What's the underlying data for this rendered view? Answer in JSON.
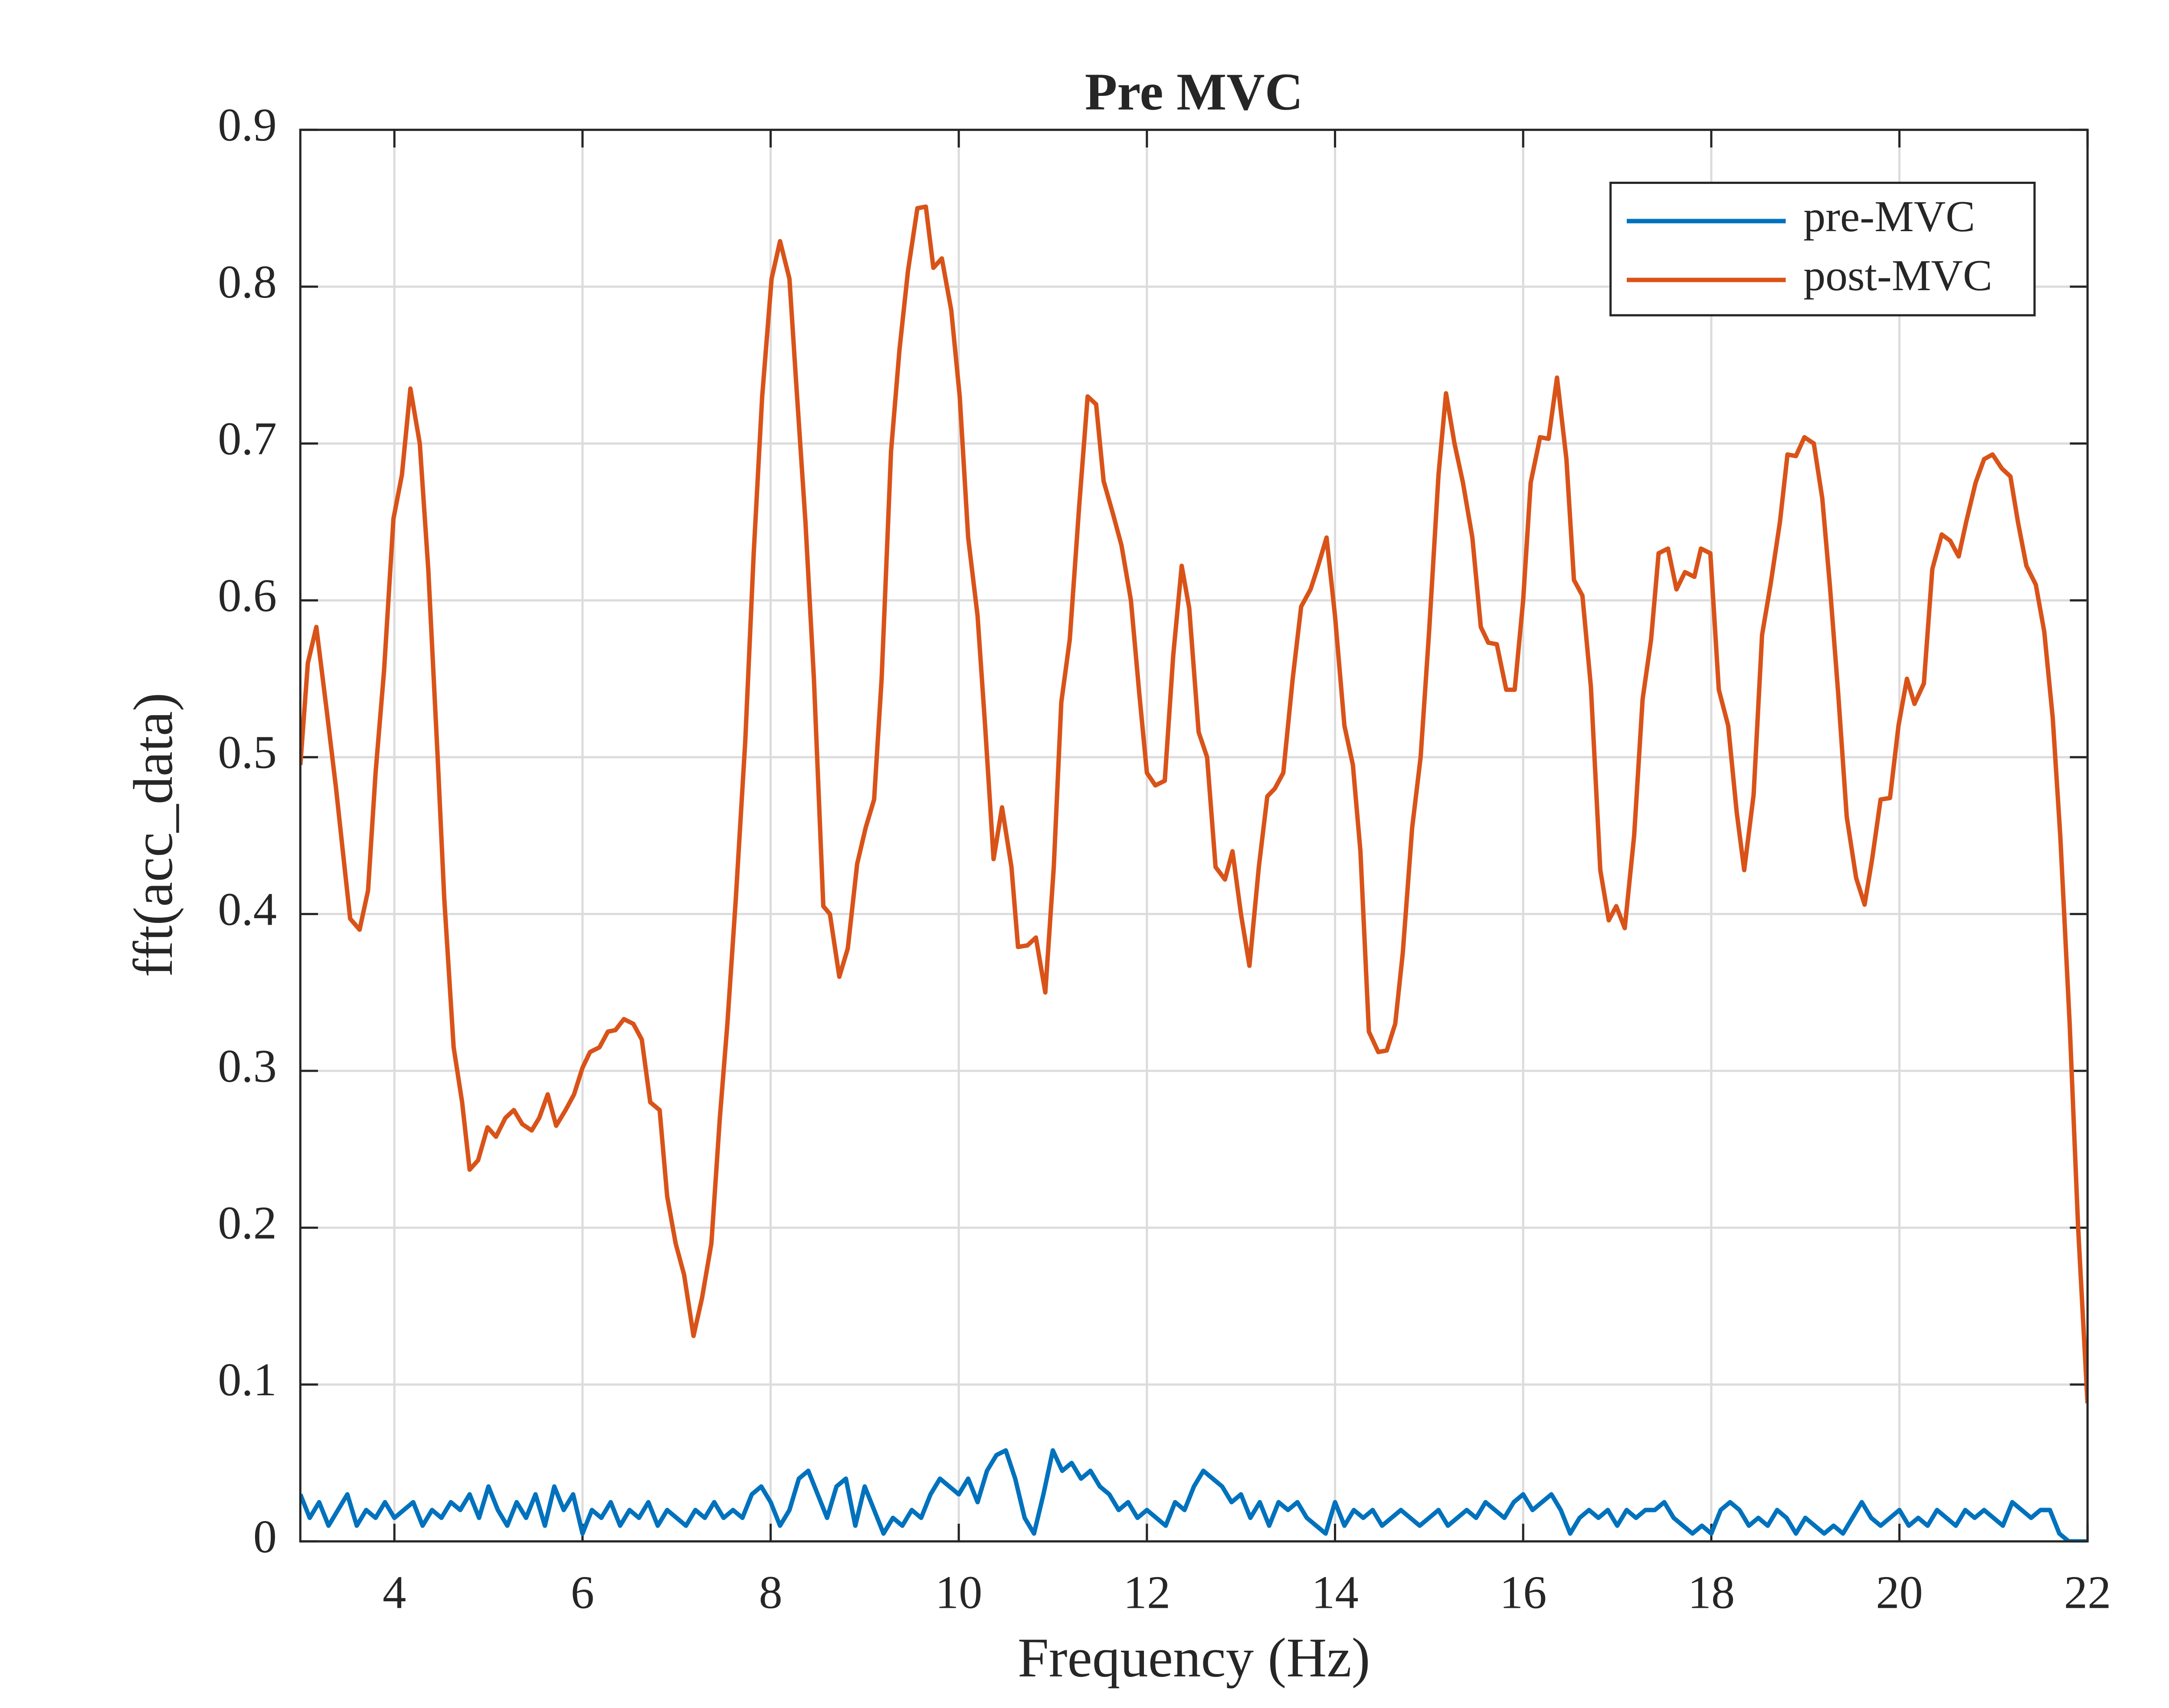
{
  "chart_data": {
    "type": "line",
    "title": "Pre MVC",
    "x_label": "Frequency (Hz)",
    "y_label": "fft(acc_data)",
    "xlim": [
      3,
      22
    ],
    "ylim": [
      0,
      0.9
    ],
    "xticks": [
      4,
      6,
      8,
      10,
      12,
      14,
      16,
      18,
      20,
      22
    ],
    "yticks": [
      0,
      0.1,
      0.2,
      0.3,
      0.4,
      0.5,
      0.6,
      0.7,
      0.8,
      0.9
    ],
    "grid": true,
    "legend": "upper right",
    "series": [
      {
        "name": "pre-MVC",
        "color": "#0072bd",
        "x": [
          3,
          3.1,
          3.2,
          3.3,
          3.4,
          3.5,
          3.6,
          3.7,
          3.8,
          3.9,
          4,
          4.1,
          4.2,
          4.3,
          4.4,
          4.5,
          4.6,
          4.7,
          4.8,
          4.9,
          5,
          5.1,
          5.2,
          5.3,
          5.4,
          5.5,
          5.6,
          5.7,
          5.8,
          5.9,
          6,
          6.1,
          6.2,
          6.3,
          6.4,
          6.5,
          6.6,
          6.7,
          6.8,
          6.9,
          7,
          7.1,
          7.2,
          7.3,
          7.4,
          7.5,
          7.6,
          7.7,
          7.8,
          7.9,
          8,
          8.1,
          8.2,
          8.3,
          8.4,
          8.5,
          8.6,
          8.7,
          8.8,
          8.9,
          9,
          9.1,
          9.2,
          9.3,
          9.4,
          9.5,
          9.6,
          9.7,
          9.8,
          9.9,
          10,
          10.1,
          10.2,
          10.3,
          10.4,
          10.5,
          10.6,
          10.7,
          10.8,
          10.9,
          11,
          11.1,
          11.2,
          11.3,
          11.4,
          11.5,
          11.6,
          11.7,
          11.8,
          11.9,
          12,
          12.1,
          12.2,
          12.3,
          12.4,
          12.5,
          12.6,
          12.7,
          12.8,
          12.9,
          13,
          13.1,
          13.2,
          13.3,
          13.4,
          13.5,
          13.6,
          13.7,
          13.8,
          13.9,
          14,
          14.1,
          14.2,
          14.3,
          14.4,
          14.5,
          14.6,
          14.7,
          14.8,
          14.9,
          15,
          15.1,
          15.2,
          15.3,
          15.4,
          15.5,
          15.6,
          15.7,
          15.8,
          15.9,
          16,
          16.1,
          16.2,
          16.3,
          16.4,
          16.5,
          16.6,
          16.7,
          16.8,
          16.9,
          17,
          17.1,
          17.2,
          17.3,
          17.4,
          17.5,
          17.6,
          17.7,
          17.8,
          17.9,
          18,
          18.1,
          18.2,
          18.3,
          18.4,
          18.5,
          18.6,
          18.7,
          18.8,
          18.9,
          19,
          19.1,
          19.2,
          19.3,
          19.4,
          19.5,
          19.6,
          19.7,
          19.8,
          19.9,
          20,
          20.1,
          20.2,
          20.3,
          20.4,
          20.5,
          20.6,
          20.7,
          20.8,
          20.9,
          21,
          21.1,
          21.2,
          21.3,
          21.4,
          21.5,
          21.6,
          21.7,
          21.8,
          21.9,
          22
        ],
        "values": [
          0.03,
          0.015,
          0.025,
          0.01,
          0.02,
          0.03,
          0.01,
          0.02,
          0.015,
          0.025,
          0.015,
          0.02,
          0.025,
          0.01,
          0.02,
          0.015,
          0.025,
          0.02,
          0.03,
          0.015,
          0.035,
          0.02,
          0.01,
          0.025,
          0.015,
          0.03,
          0.01,
          0.035,
          0.02,
          0.03,
          0.005,
          0.02,
          0.015,
          0.025,
          0.01,
          0.02,
          0.015,
          0.025,
          0.01,
          0.02,
          0.015,
          0.01,
          0.02,
          0.015,
          0.025,
          0.015,
          0.02,
          0.015,
          0.03,
          0.035,
          0.025,
          0.01,
          0.02,
          0.04,
          0.045,
          0.03,
          0.015,
          0.035,
          0.04,
          0.01,
          0.035,
          0.02,
          0.005,
          0.015,
          0.01,
          0.02,
          0.015,
          0.03,
          0.04,
          0.035,
          0.03,
          0.04,
          0.025,
          0.045,
          0.055,
          0.058,
          0.04,
          0.015,
          0.005,
          0.03,
          0.058,
          0.045,
          0.05,
          0.04,
          0.045,
          0.035,
          0.03,
          0.02,
          0.025,
          0.015,
          0.02,
          0.015,
          0.01,
          0.025,
          0.02,
          0.035,
          0.045,
          0.04,
          0.035,
          0.025,
          0.03,
          0.015,
          0.025,
          0.01,
          0.025,
          0.02,
          0.025,
          0.015,
          0.01,
          0.005,
          0.025,
          0.01,
          0.02,
          0.015,
          0.02,
          0.01,
          0.015,
          0.02,
          0.015,
          0.01,
          0.015,
          0.02,
          0.01,
          0.015,
          0.02,
          0.015,
          0.025,
          0.02,
          0.015,
          0.025,
          0.03,
          0.02,
          0.025,
          0.03,
          0.02,
          0.005,
          0.015,
          0.02,
          0.015,
          0.02,
          0.01,
          0.02,
          0.015,
          0.02,
          0.02,
          0.025,
          0.015,
          0.01,
          0.005,
          0.01,
          0.005,
          0.02,
          0.025,
          0.02,
          0.01,
          0.015,
          0.01,
          0.02,
          0.015,
          0.005,
          0.015,
          0.01,
          0.005,
          0.01,
          0.005,
          0.015,
          0.025,
          0.015,
          0.01,
          0.015,
          0.02,
          0.01,
          0.015,
          0.01,
          0.02,
          0.015,
          0.01,
          0.02,
          0.015,
          0.02,
          0.015,
          0.01,
          0.025,
          0.02,
          0.015,
          0.02,
          0.02,
          0.005,
          0,
          0,
          0
        ]
      },
      {
        "name": "post-MVC",
        "color": "#d95319",
        "x": [
          3,
          3.08,
          3.17,
          3.28,
          3.38,
          3.47,
          3.53,
          3.63,
          3.72,
          3.8,
          3.89,
          3.99,
          4.08,
          4.17,
          4.27,
          4.36,
          4.46,
          4.53,
          4.63,
          4.72,
          4.8,
          4.89,
          4.99,
          5.08,
          5.18,
          5.27,
          5.36,
          5.46,
          5.54,
          5.63,
          5.72,
          5.82,
          5.91,
          6,
          6.08,
          6.18,
          6.27,
          6.35,
          6.44,
          6.54,
          6.63,
          6.72,
          6.82,
          6.9,
          6.99,
          7.08,
          7.18,
          7.27,
          7.37,
          7.46,
          7.54,
          7.63,
          7.73,
          7.82,
          7.91,
          8.01,
          8.1,
          8.2,
          8.27,
          8.37,
          8.46,
          8.56,
          8.63,
          8.73,
          8.82,
          8.92,
          9.01,
          9.1,
          9.18,
          9.28,
          9.37,
          9.46,
          9.56,
          9.65,
          9.73,
          9.82,
          9.92,
          10.01,
          10.1,
          10.2,
          10.28,
          10.37,
          10.46,
          10.56,
          10.63,
          10.73,
          10.82,
          10.92,
          11.01,
          11.09,
          11.18,
          11.28,
          11.37,
          11.46,
          11.54,
          11.64,
          11.73,
          11.83,
          11.92,
          12,
          12.09,
          12.19,
          12.28,
          12.37,
          12.45,
          12.55,
          12.64,
          12.73,
          12.83,
          12.91,
          13,
          13.09,
          13.19,
          13.28,
          13.36,
          13.45,
          13.55,
          13.64,
          13.74,
          13.81,
          13.91,
          14,
          14.1,
          14.19,
          14.27,
          14.36,
          14.46,
          14.55,
          14.64,
          14.72,
          14.82,
          14.91,
          15,
          15.1,
          15.18,
          15.27,
          15.36,
          15.46,
          15.55,
          15.63,
          15.72,
          15.82,
          15.91,
          16,
          16.08,
          16.18,
          16.27,
          16.36,
          16.46,
          16.54,
          16.63,
          16.72,
          16.82,
          16.91,
          16.99,
          17.08,
          17.18,
          17.27,
          17.36,
          17.44,
          17.54,
          17.63,
          17.72,
          17.82,
          17.89,
          17.99,
          18.08,
          18.18,
          18.27,
          18.35,
          18.45,
          18.54,
          18.63,
          18.73,
          18.81,
          18.9,
          18.99,
          19.09,
          19.18,
          19.26,
          19.35,
          19.44,
          19.54,
          19.63,
          19.71,
          19.8,
          19.9,
          19.99,
          20.08,
          20.16,
          20.26,
          20.35,
          20.45,
          20.54,
          20.63,
          20.71,
          20.81,
          20.9,
          20.99,
          21.09,
          21.18,
          21.26,
          21.35,
          21.45,
          21.54,
          21.63,
          21.71,
          21.81,
          21.9,
          22
        ],
        "values": [
          0.495,
          0.56,
          0.583,
          0.53,
          0.48,
          0.43,
          0.397,
          0.39,
          0.415,
          0.49,
          0.555,
          0.652,
          0.68,
          0.735,
          0.7,
          0.62,
          0.5,
          0.41,
          0.315,
          0.28,
          0.237,
          0.243,
          0.264,
          0.258,
          0.27,
          0.275,
          0.266,
          0.262,
          0.27,
          0.285,
          0.265,
          0.275,
          0.285,
          0.302,
          0.312,
          0.315,
          0.325,
          0.326,
          0.333,
          0.33,
          0.32,
          0.28,
          0.275,
          0.22,
          0.19,
          0.17,
          0.131,
          0.155,
          0.19,
          0.27,
          0.33,
          0.41,
          0.51,
          0.63,
          0.73,
          0.805,
          0.829,
          0.805,
          0.74,
          0.65,
          0.55,
          0.405,
          0.4,
          0.36,
          0.378,
          0.432,
          0.455,
          0.473,
          0.55,
          0.695,
          0.76,
          0.81,
          0.85,
          0.851,
          0.812,
          0.818,
          0.785,
          0.73,
          0.64,
          0.59,
          0.52,
          0.435,
          0.468,
          0.43,
          0.379,
          0.38,
          0.385,
          0.35,
          0.43,
          0.535,
          0.575,
          0.66,
          0.73,
          0.725,
          0.676,
          0.655,
          0.635,
          0.6,
          0.54,
          0.49,
          0.482,
          0.485,
          0.565,
          0.622,
          0.595,
          0.516,
          0.5,
          0.43,
          0.422,
          0.44,
          0.4,
          0.367,
          0.43,
          0.475,
          0.48,
          0.49,
          0.55,
          0.596,
          0.607,
          0.62,
          0.64,
          0.59,
          0.52,
          0.495,
          0.44,
          0.325,
          0.312,
          0.313,
          0.33,
          0.375,
          0.455,
          0.5,
          0.58,
          0.68,
          0.732,
          0.7,
          0.675,
          0.64,
          0.583,
          0.573,
          0.572,
          0.543,
          0.543,
          0.6,
          0.675,
          0.704,
          0.703,
          0.742,
          0.69,
          0.613,
          0.603,
          0.545,
          0.428,
          0.396,
          0.405,
          0.391,
          0.45,
          0.537,
          0.575,
          0.63,
          0.633,
          0.607,
          0.618,
          0.615,
          0.633,
          0.63,
          0.543,
          0.52,
          0.465,
          0.428,
          0.476,
          0.578,
          0.61,
          0.65,
          0.693,
          0.692,
          0.704,
          0.7,
          0.665,
          0.61,
          0.54,
          0.462,
          0.423,
          0.406,
          0.435,
          0.473,
          0.474,
          0.52,
          0.55,
          0.534,
          0.547,
          0.62,
          0.642,
          0.638,
          0.628,
          0.65,
          0.675,
          0.69,
          0.693,
          0.684,
          0.679,
          0.65,
          0.622,
          0.61,
          0.58,
          0.525,
          0.45,
          0.33,
          0.2,
          0.088
        ]
      }
    ]
  }
}
